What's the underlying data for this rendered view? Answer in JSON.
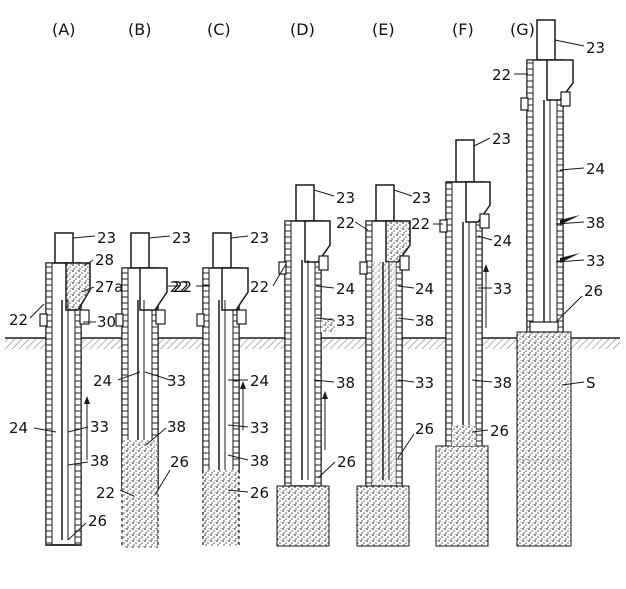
{
  "panels": [
    {
      "id": "A",
      "label": "(A)",
      "refs": [
        "23",
        "28",
        "27a",
        "22",
        "30",
        "24",
        "33",
        "38",
        "26"
      ]
    },
    {
      "id": "B",
      "label": "(B)",
      "refs": [
        "23",
        "22",
        "33",
        "24",
        "38",
        "26",
        "22"
      ]
    },
    {
      "id": "C",
      "label": "(C)",
      "refs": [
        "23",
        "22",
        "24",
        "33",
        "38",
        "26"
      ]
    },
    {
      "id": "D",
      "label": "(D)",
      "refs": [
        "23",
        "22",
        "24",
        "33",
        "38",
        "26"
      ]
    },
    {
      "id": "E",
      "label": "(E)",
      "refs": [
        "23",
        "22",
        "24",
        "38",
        "33",
        "26"
      ]
    },
    {
      "id": "F",
      "label": "(F)",
      "refs": [
        "23",
        "22",
        "24",
        "33",
        "38",
        "26"
      ]
    },
    {
      "id": "G",
      "label": "(G)",
      "refs": [
        "23",
        "22",
        "24",
        "38",
        "33",
        "26",
        "S"
      ]
    }
  ],
  "colors": {
    "ink": "#1a1a1a",
    "paper": "#ffffff",
    "soil": "#8a8a8a"
  }
}
